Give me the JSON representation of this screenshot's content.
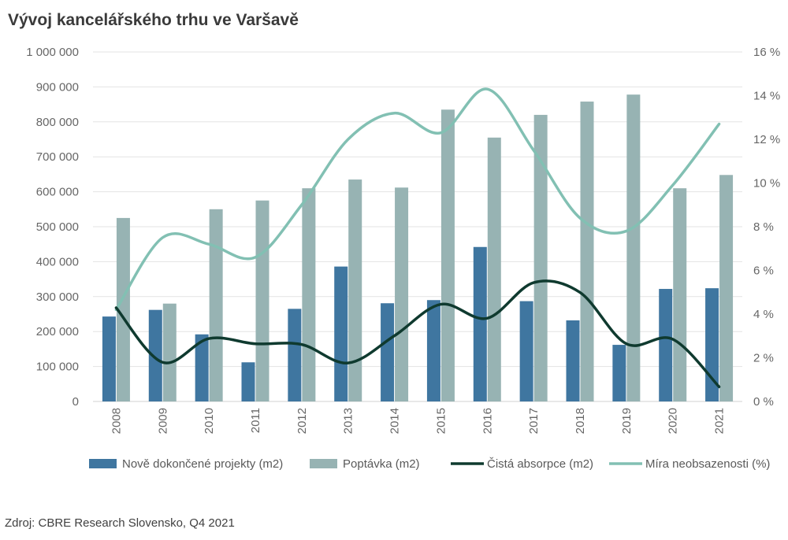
{
  "title": "Vývoj kancelářského trhu ve Varšavě",
  "source": "Zdroj: CBRE Research Slovensko, Q4 2021",
  "colors": {
    "new_projects": "#3f76a0",
    "demand": "#97b3b3",
    "absorption": "#0f3a2f",
    "vacancy": "#82c0b3",
    "grid": "#e3e3e3",
    "axis_text": "#666666"
  },
  "chart_data": {
    "type": "bar",
    "categories": [
      "2008",
      "2009",
      "2010",
      "2011",
      "2012",
      "2013",
      "2014",
      "2015",
      "2016",
      "2017",
      "2018",
      "2019",
      "2020",
      "2021"
    ],
    "y_left": {
      "ylim": [
        0,
        1000000
      ],
      "ticks": [
        0,
        100000,
        200000,
        300000,
        400000,
        500000,
        600000,
        700000,
        800000,
        900000,
        1000000
      ],
      "tick_labels": [
        "0",
        "100 000",
        "200 000",
        "300 000",
        "400 000",
        "500 000",
        "600 000",
        "700 000",
        "800 000",
        "900 000",
        "1 000 000"
      ]
    },
    "y_right": {
      "ylim": [
        0,
        16
      ],
      "ticks": [
        0,
        2,
        4,
        6,
        8,
        10,
        12,
        14,
        16
      ],
      "tick_labels": [
        "0 %",
        "2 %",
        "4 %",
        "6 %",
        "8 %",
        "10 %",
        "12 %",
        "14 %",
        "16 %"
      ]
    },
    "grid": true,
    "legend_position": "bottom",
    "series": [
      {
        "name": "Nově dokončené projekty (m2)",
        "type": "bar",
        "axis": "left",
        "values": [
          243000,
          262000,
          192000,
          112000,
          265000,
          386000,
          281000,
          290000,
          442000,
          287000,
          232000,
          162000,
          322000,
          324000
        ]
      },
      {
        "name": "Poptávka (m2)",
        "type": "bar",
        "axis": "left",
        "values": [
          525000,
          280000,
          550000,
          575000,
          610000,
          635000,
          612000,
          835000,
          755000,
          820000,
          858000,
          878000,
          610000,
          648000
        ]
      },
      {
        "name": "Čistá absorpce (m2)",
        "type": "line",
        "axis": "left",
        "values": [
          268000,
          112000,
          180000,
          165000,
          163000,
          110000,
          188000,
          278000,
          238000,
          340000,
          312000,
          165000,
          178000,
          42000
        ]
      },
      {
        "name": "Míra neobsazenosti (%)",
        "type": "line",
        "axis": "right",
        "values": [
          4.2,
          7.5,
          7.2,
          6.6,
          9.0,
          12.0,
          13.2,
          12.3,
          14.3,
          11.5,
          8.4,
          7.8,
          9.9,
          12.7
        ]
      }
    ]
  }
}
